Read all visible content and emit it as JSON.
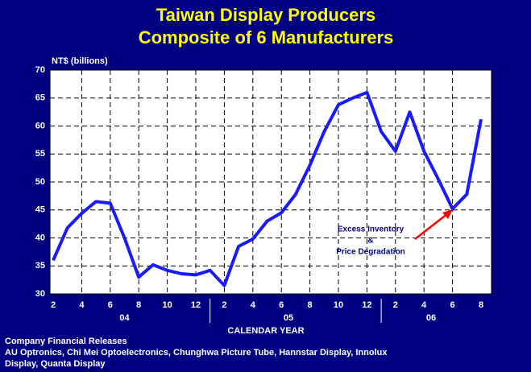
{
  "chart_data": {
    "type": "line",
    "title": [
      "Taiwan Display Producers",
      "Composite of 6 Manufacturers"
    ],
    "y_label": "NT$ (billions)",
    "x_label": "CALENDAR YEAR",
    "categories": [
      "2",
      null,
      "4",
      null,
      "6",
      null,
      "8",
      null,
      "10",
      null,
      "12",
      null,
      "2",
      null,
      "4",
      null,
      "6",
      null,
      "8",
      null,
      "10",
      null,
      "12",
      null,
      "2",
      null,
      "4",
      null,
      "6",
      null,
      "8"
    ],
    "groups": [
      {
        "label": "04",
        "start": 0,
        "end": 10
      },
      {
        "label": "05",
        "start": 11,
        "end": 22
      },
      {
        "label": "06",
        "start": 23,
        "end": 30
      }
    ],
    "series": [
      {
        "name": "Composite",
        "color": "#1a1aff",
        "values": [
          36,
          41.8,
          44.4,
          46.5,
          46.2,
          40,
          33,
          35.2,
          34.2,
          33.6,
          33.4,
          34.2,
          31.5,
          38.5,
          39.8,
          43,
          44.5,
          47.8,
          53,
          59,
          63.8,
          65,
          66,
          59,
          55.5,
          62.5,
          55.5,
          50.5,
          45.2,
          47.8,
          61.2
        ]
      }
    ],
    "ylim": [
      30,
      70
    ],
    "yticks": [
      30,
      35,
      40,
      45,
      50,
      55,
      60,
      65,
      70
    ],
    "grid": true,
    "annotation": [
      "Excess Inventory",
      "&",
      "Price Degradation"
    ],
    "source": [
      "Company Financial Releases",
      "AU Optronics, Chi Mei Optoelectronics, Chunghwa Picture Tube, Hannstar Display, Innolux",
      "Display, Quanta Display"
    ]
  }
}
